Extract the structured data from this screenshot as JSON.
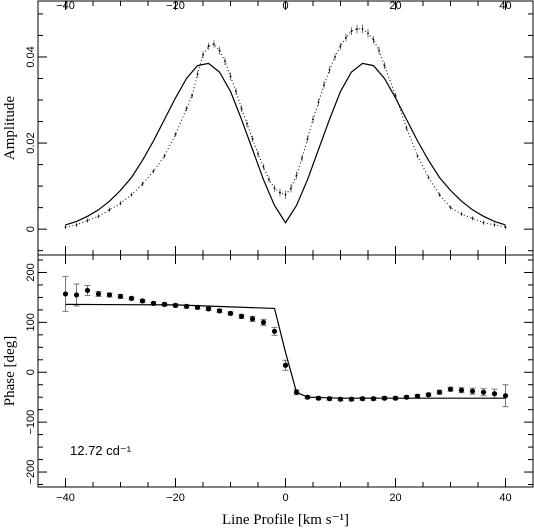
{
  "chart_data": [
    {
      "type": "line",
      "panel": "top",
      "title": "",
      "xlabel": "",
      "ylabel": "Amplitude",
      "xlim": [
        -45,
        45
      ],
      "ylim": [
        -0.006,
        0.053
      ],
      "xticks": [
        -40,
        -20,
        0,
        20,
        40
      ],
      "xtick_labels": [
        "−40",
        "−20",
        "0",
        "20",
        "40"
      ],
      "yticks": [
        0,
        0.02,
        0.04
      ],
      "ytick_labels": [
        "0",
        "0.02",
        "0.04"
      ],
      "grid": false,
      "series": [
        {
          "style": "dotted-with-error-bars",
          "x": [
            -40,
            -38,
            -36,
            -34,
            -32,
            -30,
            -28,
            -26,
            -24,
            -22,
            -20,
            -18,
            -17,
            -16,
            -15,
            -14,
            -13,
            -12,
            -11,
            -10,
            -9,
            -8,
            -7,
            -6,
            -5,
            -4,
            -3,
            -2,
            -1,
            0,
            1,
            2,
            3,
            4,
            5,
            6,
            7,
            8,
            9,
            10,
            11,
            12,
            13,
            14,
            15,
            16,
            17,
            18,
            20,
            22,
            24,
            26,
            28,
            30,
            32,
            34,
            36,
            38,
            40
          ],
          "y": [
            0.0005,
            0.001,
            0.002,
            0.003,
            0.0045,
            0.006,
            0.008,
            0.0105,
            0.0135,
            0.017,
            0.022,
            0.028,
            0.031,
            0.036,
            0.0405,
            0.0425,
            0.043,
            0.0415,
            0.039,
            0.0355,
            0.032,
            0.028,
            0.0245,
            0.021,
            0.0175,
            0.0145,
            0.0115,
            0.0095,
            0.0085,
            0.008,
            0.0095,
            0.0125,
            0.0165,
            0.021,
            0.0255,
            0.0295,
            0.0335,
            0.037,
            0.04,
            0.0425,
            0.0445,
            0.046,
            0.0465,
            0.0465,
            0.0455,
            0.044,
            0.0415,
            0.038,
            0.031,
            0.0235,
            0.017,
            0.012,
            0.008,
            0.005,
            0.0035,
            0.0025,
            0.0015,
            0.001,
            0.0005
          ],
          "err": [
            0.0005,
            0.0005,
            0.0005,
            0.0005,
            0.0005,
            0.0005,
            0.0005,
            0.0005,
            0.0005,
            0.0005,
            0.0005,
            0.0006,
            0.0006,
            0.0007,
            0.0008,
            0.0008,
            0.0009,
            0.0009,
            0.0009,
            0.0009,
            0.0008,
            0.0008,
            0.0008,
            0.0007,
            0.0007,
            0.0007,
            0.0007,
            0.0008,
            0.0009,
            0.001,
            0.001,
            0.0009,
            0.0008,
            0.0008,
            0.0008,
            0.0008,
            0.0008,
            0.0008,
            0.0008,
            0.0008,
            0.0009,
            0.0009,
            0.001,
            0.001,
            0.001,
            0.0009,
            0.0009,
            0.0008,
            0.0007,
            0.0006,
            0.0005,
            0.0005,
            0.0005,
            0.0005,
            0.0005,
            0.0005,
            0.0005,
            0.0005,
            0.0005
          ]
        },
        {
          "style": "solid",
          "x": [
            -40,
            -38,
            -36,
            -34,
            -32,
            -30,
            -28,
            -26,
            -24,
            -22,
            -20,
            -18,
            -16,
            -14,
            -12,
            -10,
            -8,
            -6,
            -4,
            -2,
            0,
            2,
            4,
            6,
            8,
            10,
            12,
            14,
            16,
            18,
            20,
            22,
            24,
            26,
            28,
            30,
            32,
            34,
            36,
            38,
            40
          ],
          "y": [
            0.001,
            0.0018,
            0.003,
            0.0045,
            0.0065,
            0.009,
            0.012,
            0.016,
            0.0205,
            0.0255,
            0.0305,
            0.035,
            0.038,
            0.0385,
            0.0365,
            0.032,
            0.0255,
            0.0185,
            0.0115,
            0.0055,
            0.0015,
            0.0055,
            0.0115,
            0.0185,
            0.0255,
            0.032,
            0.0365,
            0.0385,
            0.038,
            0.035,
            0.0305,
            0.0255,
            0.0205,
            0.016,
            0.012,
            0.009,
            0.0065,
            0.0045,
            0.003,
            0.0018,
            0.001
          ]
        }
      ]
    },
    {
      "type": "scatter",
      "panel": "bottom",
      "title": "",
      "xlabel": "Line Profile [km s⁻¹]",
      "ylabel": "Phase [deg]",
      "xlim": [
        -45,
        45
      ],
      "ylim": [
        -230,
        235
      ],
      "xticks": [
        -40,
        -20,
        0,
        20,
        40
      ],
      "xtick_labels": [
        "−40",
        "−20",
        "0",
        "20",
        "40"
      ],
      "yticks": [
        -200,
        -100,
        0,
        100,
        200
      ],
      "ytick_labels": [
        "−200",
        "−100",
        "0",
        "100",
        "200"
      ],
      "annotation": "12.72 cd⁻¹",
      "grid": false,
      "series": [
        {
          "style": "filled-circles-with-error-bars",
          "x": [
            -40,
            -38,
            -36,
            -34,
            -32,
            -30,
            -28,
            -26,
            -24,
            -22,
            -20,
            -18,
            -16,
            -14,
            -12,
            -10,
            -8,
            -6,
            -4,
            -2,
            0,
            2,
            4,
            6,
            8,
            10,
            12,
            14,
            16,
            18,
            20,
            22,
            24,
            26,
            28,
            30,
            32,
            34,
            36,
            38,
            40
          ],
          "y": [
            157,
            155,
            164,
            157,
            155,
            152,
            148,
            143,
            138,
            136,
            134,
            132,
            130,
            127,
            123,
            118,
            112,
            107,
            100,
            82,
            14,
            -40,
            -50,
            -52,
            -53,
            -54,
            -54,
            -53,
            -53,
            -52,
            -52,
            -50,
            -48,
            -45,
            -40,
            -34,
            -36,
            -38,
            -40,
            -43,
            -47
          ],
          "err": [
            35,
            22,
            10,
            5,
            4,
            4,
            3,
            3,
            3,
            3,
            3,
            3,
            3,
            3,
            3,
            3,
            4,
            5,
            6,
            8,
            10,
            5,
            3,
            3,
            3,
            3,
            3,
            3,
            3,
            3,
            3,
            3,
            3,
            3,
            4,
            4,
            5,
            6,
            7,
            9,
            22
          ]
        },
        {
          "style": "solid",
          "x": [
            -40,
            -20,
            -10,
            -2,
            0,
            2,
            4,
            10,
            20,
            30,
            40
          ],
          "y": [
            136,
            135,
            131,
            128,
            40,
            -40,
            -50,
            -52,
            -52,
            -52,
            -52
          ]
        }
      ]
    }
  ]
}
